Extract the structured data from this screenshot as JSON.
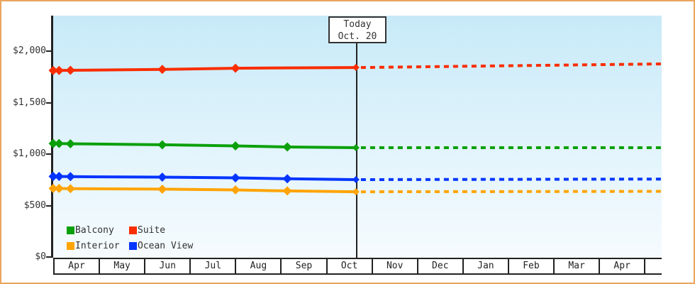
{
  "frame": {
    "border_color": "#eaa55e"
  },
  "chart_data": {
    "type": "line",
    "title": "",
    "x_unit": "months_since_apr_1",
    "x_labels": [
      "Apr",
      "May",
      "Jun",
      "Jul",
      "Aug",
      "Sep",
      "Oct",
      "Nov",
      "Dec",
      "Jan",
      "Feb",
      "Mar",
      "Apr"
    ],
    "y_axis": {
      "tick_labels": [
        "$2,000",
        "$1,500",
        "$1,000",
        "$500",
        "$0"
      ],
      "tick_values": [
        2000,
        1500,
        1000,
        500,
        0
      ],
      "range": [
        0,
        2345
      ]
    },
    "grid": "off",
    "legend_position": "bottom-left-inside",
    "today_marker": {
      "line1": "Today",
      "line2": "Oct. 20",
      "month_offset": 6.66
    },
    "series": [
      {
        "name": "Suite",
        "color": "#f92d00",
        "points": [
          {
            "m": 0.0,
            "v": 1812
          },
          {
            "m": 0.13,
            "v": 1812
          },
          {
            "m": 0.38,
            "v": 1814
          },
          {
            "m": 2.4,
            "v": 1822
          },
          {
            "m": 4.01,
            "v": 1834
          },
          {
            "m": 6.66,
            "v": 1841
          }
        ],
        "forecast_end": {
          "m": 13.38,
          "v": 1876
        }
      },
      {
        "name": "Balcony",
        "color": "#0ba00b",
        "points": [
          {
            "m": 0.0,
            "v": 1103
          },
          {
            "m": 0.13,
            "v": 1103
          },
          {
            "m": 0.38,
            "v": 1100
          },
          {
            "m": 2.4,
            "v": 1090
          },
          {
            "m": 4.01,
            "v": 1079
          },
          {
            "m": 5.15,
            "v": 1069
          },
          {
            "m": 6.66,
            "v": 1062
          }
        ],
        "forecast_end": {
          "m": 13.38,
          "v": 1062
        }
      },
      {
        "name": "Ocean View",
        "color": "#0435ff",
        "points": [
          {
            "m": 0.0,
            "v": 783
          },
          {
            "m": 0.13,
            "v": 783
          },
          {
            "m": 0.38,
            "v": 781
          },
          {
            "m": 2.4,
            "v": 776
          },
          {
            "m": 4.01,
            "v": 769
          },
          {
            "m": 5.15,
            "v": 760
          },
          {
            "m": 6.66,
            "v": 752
          }
        ],
        "forecast_end": {
          "m": 13.38,
          "v": 757
        }
      },
      {
        "name": "Interior",
        "color": "#ffa405",
        "points": [
          {
            "m": 0.0,
            "v": 666
          },
          {
            "m": 0.13,
            "v": 666
          },
          {
            "m": 0.38,
            "v": 664
          },
          {
            "m": 2.4,
            "v": 659
          },
          {
            "m": 4.01,
            "v": 652
          },
          {
            "m": 5.15,
            "v": 642
          },
          {
            "m": 6.66,
            "v": 634
          }
        ],
        "forecast_end": {
          "m": 13.38,
          "v": 638
        }
      }
    ],
    "legend": [
      {
        "label": "Balcony",
        "color": "#0ba00b"
      },
      {
        "label": "Suite",
        "color": "#f92d00"
      },
      {
        "label": "Interior",
        "color": "#ffa405"
      },
      {
        "label": "Ocean View",
        "color": "#0435ff"
      }
    ]
  }
}
